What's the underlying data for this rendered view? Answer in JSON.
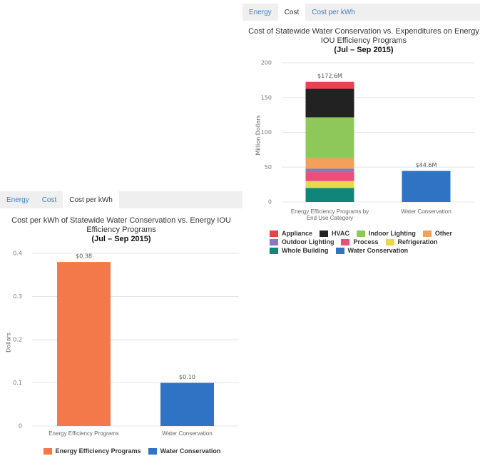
{
  "panels": [
    {
      "tabs": [
        "Energy",
        "Cost",
        "Cost per kWh"
      ]
    },
    {
      "tabs": [
        "Energy",
        "Cost",
        "Cost per kWh"
      ]
    }
  ],
  "chart_data": [
    {
      "type": "bar",
      "stacked": true,
      "title": "Cost of Statewide Water Conservation vs. Expenditures on Energy IOU Efficiency Programs",
      "subtitle": "(Jul – Sep 2015)",
      "y_label": "Million Dollars",
      "categories": [
        "Energy Efficiency Programs by End Use Category",
        "Water Conservation"
      ],
      "series": [
        {
          "name": "Appliance",
          "color": "#e8414f",
          "values": [
            10,
            null
          ]
        },
        {
          "name": "HVAC",
          "color": "#222222",
          "values": [
            41,
            null
          ]
        },
        {
          "name": "Indoor Lighting",
          "color": "#8fc85a",
          "values": [
            58.6,
            null
          ]
        },
        {
          "name": "Other",
          "color": "#f5a05a",
          "values": [
            15,
            null
          ]
        },
        {
          "name": "Outdoor Lighting",
          "color": "#8778c0",
          "values": [
            5,
            null
          ]
        },
        {
          "name": "Process",
          "color": "#e8507a",
          "values": [
            13,
            null
          ]
        },
        {
          "name": "Refrigeration",
          "color": "#e8d84a",
          "values": [
            10,
            null
          ]
        },
        {
          "name": "Whole Building",
          "color": "#12857a",
          "values": [
            20,
            null
          ]
        },
        {
          "name": "Water Conservation",
          "color": "#2f73c4",
          "values": [
            null,
            44.6
          ],
          "value_labels": [
            null,
            "$44.6M"
          ]
        }
      ],
      "stack_totals": [
        172.6,
        null
      ],
      "stack_total_labels": [
        "$172.6M",
        null
      ],
      "ylim": [
        0,
        200
      ],
      "yticks": [
        0,
        50,
        100,
        150,
        200
      ],
      "grid": true,
      "legend": "bottom"
    },
    {
      "type": "bar",
      "stacked": false,
      "title": "Cost per kWh of Statewide Water Conservation vs. Energy IOU Efficiency Programs",
      "subtitle": "(Jul – Sep 2015)",
      "y_label": "Dollars",
      "categories": [
        "Energy Efficiency Programs",
        "Water Conservation"
      ],
      "series": [
        {
          "name": "Energy Efficiency Programs",
          "color": "#f4794a",
          "values": [
            0.38,
            null
          ],
          "value_labels": [
            "$0.38",
            null
          ]
        },
        {
          "name": "Water Conservation",
          "color": "#2f73c4",
          "values": [
            null,
            0.1
          ],
          "value_labels": [
            null,
            "$0.10"
          ]
        }
      ],
      "ylim": [
        0,
        0.4
      ],
      "yticks": [
        0,
        0.1,
        0.2,
        0.3,
        0.4
      ],
      "grid": true,
      "legend": "bottom"
    }
  ]
}
